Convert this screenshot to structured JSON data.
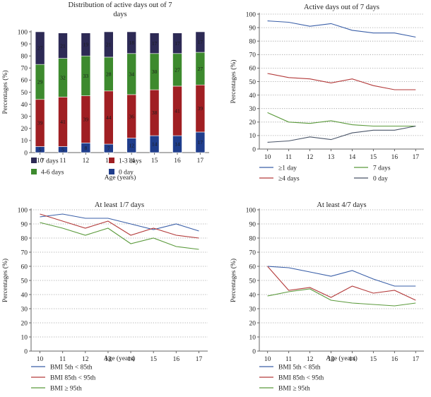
{
  "chart_data": [
    {
      "type": "bar",
      "stacked": true,
      "title": "Distribution of active days out of 7 days",
      "xlabel": "Age (years)",
      "ylabel": "Percentages (%)",
      "ylim": [
        0,
        100
      ],
      "yticks": [
        0,
        10,
        20,
        30,
        40,
        50,
        60,
        70,
        80,
        90,
        100
      ],
      "categories": [
        "10",
        "11",
        "12",
        "13",
        "14",
        "15",
        "16",
        "17"
      ],
      "grid": false,
      "legend_position": "bottom",
      "series": [
        {
          "name": "0 day",
          "color": "#1f3d8c",
          "values": [
            5,
            5,
            8,
            7,
            12,
            14,
            14,
            17
          ]
        },
        {
          "name": "1-3 days",
          "color": "#a01f23",
          "values": [
            39,
            41,
            39,
            44,
            36,
            38,
            41,
            39
          ]
        },
        {
          "name": "4-6 days",
          "color": "#3d8a2e",
          "values": [
            29,
            32,
            33,
            28,
            34,
            30,
            27,
            27
          ]
        },
        {
          "name": "7 days",
          "color": "#2d2a55",
          "values": [
            27,
            21,
            19,
            21,
            18,
            17,
            17,
            17
          ]
        }
      ],
      "legend_order": [
        "7 days",
        "1-3 days",
        "4-6 days",
        "0 day"
      ]
    },
    {
      "type": "line",
      "title": "Active days out of 7 days",
      "xlabel": "",
      "ylabel": "Percentages (%)",
      "ylim": [
        0,
        100
      ],
      "yticks": [
        0,
        10,
        20,
        30,
        40,
        50,
        60,
        70,
        80,
        90,
        100
      ],
      "x": [
        "10",
        "11",
        "12",
        "13",
        "14",
        "15",
        "16",
        "17"
      ],
      "grid": "horizontal-dotted",
      "legend_position": "bottom",
      "series": [
        {
          "name": "≥1 day",
          "color": "#3a5fa8",
          "values": [
            95,
            94,
            91,
            93,
            88,
            86,
            86,
            83
          ]
        },
        {
          "name": "7 days",
          "color": "#5b9a3c",
          "values": [
            27,
            20,
            19,
            21,
            18,
            17,
            17,
            17
          ]
        },
        {
          "name": "≥4 days",
          "color": "#b33a3a",
          "values": [
            56,
            53,
            52,
            49,
            52,
            47,
            44,
            44
          ]
        },
        {
          "name": "0 day",
          "color": "#4a5568",
          "values": [
            5,
            6,
            9,
            7,
            12,
            14,
            14,
            17
          ]
        }
      ]
    },
    {
      "type": "line",
      "title": "At least 1/7 days",
      "xlabel": "Age (years)",
      "ylabel": "Percentages (%)",
      "ylim": [
        0,
        100
      ],
      "yticks": [
        0,
        10,
        20,
        30,
        40,
        50,
        60,
        70,
        80,
        90,
        100
      ],
      "x": [
        "10",
        "11",
        "12",
        "13",
        "14",
        "15",
        "16",
        "17"
      ],
      "grid": "horizontal-dotted",
      "legend_position": "bottom",
      "series": [
        {
          "name": "BMI 5th < 85th",
          "color": "#3a5fa8",
          "values": [
            95,
            97,
            94,
            94,
            90,
            86,
            90,
            85
          ]
        },
        {
          "name": "BMI 85th < 95th",
          "color": "#b33a3a",
          "values": [
            97,
            92,
            87,
            92,
            82,
            87,
            82,
            80
          ]
        },
        {
          "name": "BMI ≥ 95th",
          "color": "#5b9a3c",
          "values": [
            91,
            87,
            82,
            87,
            76,
            80,
            74,
            72
          ]
        }
      ]
    },
    {
      "type": "line",
      "title": "At least 4/7 days",
      "xlabel": "Age (years)",
      "ylabel": "Percentages (%)",
      "ylim": [
        0,
        100
      ],
      "yticks": [
        0,
        10,
        20,
        30,
        40,
        50,
        60,
        70,
        80,
        90,
        100
      ],
      "x": [
        "10",
        "11",
        "12",
        "13",
        "14",
        "15",
        "16",
        "17"
      ],
      "grid": "horizontal-dotted",
      "legend_position": "bottom",
      "series": [
        {
          "name": "BMI 5th < 85th",
          "color": "#3a5fa8",
          "values": [
            60,
            59,
            56,
            53,
            57,
            51,
            46,
            46
          ]
        },
        {
          "name": "BMI 85th < 95th",
          "color": "#b33a3a",
          "values": [
            60,
            43,
            45,
            38,
            46,
            41,
            43,
            36
          ]
        },
        {
          "name": "BMI ≥ 95th",
          "color": "#5b9a3c",
          "values": [
            39,
            42,
            44,
            36,
            34,
            33,
            32,
            34
          ]
        }
      ]
    }
  ]
}
